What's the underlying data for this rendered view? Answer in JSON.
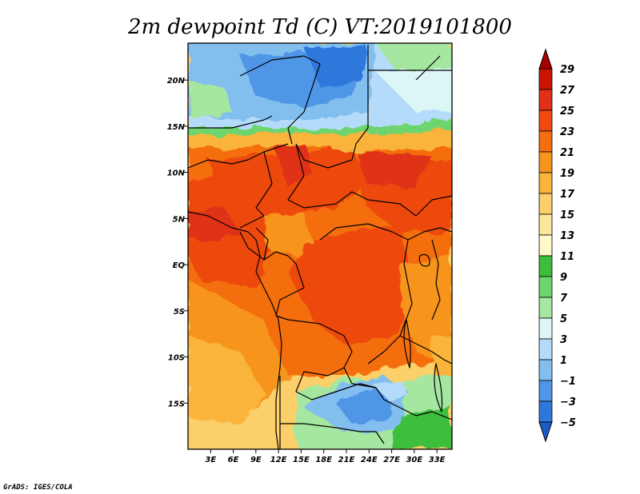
{
  "title": "2m dewpoint Td (C) VT:2019101800",
  "credit": "GrADS: IGES/COLA",
  "map": {
    "variable": "2m dewpoint",
    "units": "C",
    "valid_time": "2019101800",
    "lon_range": [
      0,
      35
    ],
    "lat_range": [
      -20,
      24
    ],
    "lon_ticks": [
      "3E",
      "6E",
      "9E",
      "12E",
      "15E",
      "18E",
      "21E",
      "24E",
      "27E",
      "30E",
      "33E"
    ],
    "lat_ticks": [
      "20N",
      "15N",
      "10N",
      "5N",
      "EQ",
      "5S",
      "10S",
      "15S"
    ]
  },
  "colorbar": {
    "labels": [
      "29",
      "27",
      "25",
      "23",
      "21",
      "19",
      "17",
      "15",
      "13",
      "11",
      "9",
      "7",
      "5",
      "3",
      "1",
      "−1",
      "−3",
      "−5"
    ],
    "colors": [
      "#a50000",
      "#c81400",
      "#e03018",
      "#ee4a10",
      "#f46e10",
      "#f7941c",
      "#fab43a",
      "#fbcf6a",
      "#fde79a",
      "#fff8c8",
      "#3cbe3c",
      "#6ed46e",
      "#a5e6a0",
      "#dcf6f6",
      "#b4dcfa",
      "#82beee",
      "#5096e6",
      "#2e78dc",
      "#1e5ac8"
    ]
  }
}
